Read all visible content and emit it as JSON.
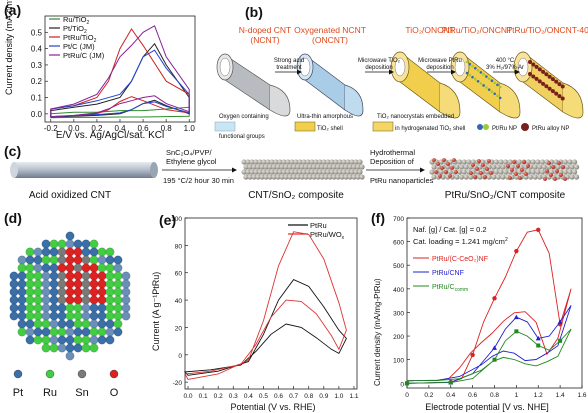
{
  "panels": {
    "a": {
      "label": "(a)",
      "ylabel": "Current density (mA cm",
      "ylabel_sup": "-2",
      "ylabel_end": ")",
      "xlabel": "E/V vs. Ag/AgCl/sat. KCl",
      "yticks": [
        "0.0",
        "0.1",
        "0.2",
        "0.3",
        "0.4",
        "0.5"
      ],
      "xticks": [
        "-0.2",
        "0.0",
        "0.2",
        "0.4",
        "0.6",
        "0.8",
        "1.0"
      ],
      "legend": [
        "Ru/TiO",
        "Pt/TiO",
        "PtRu/TiO",
        "Pt/C (JM)",
        "PtRu/C (JM)"
      ],
      "legend_sub": [
        "2",
        "2",
        "2",
        "",
        ""
      ],
      "colors": [
        "#2e8b2e",
        "#222222",
        "#cc2222",
        "#2244cc",
        "#882299"
      ]
    },
    "b": {
      "label": "(b)",
      "stage_titles": [
        "N-doped CNT",
        "Oxygenated NCNT",
        "TiO₂/ONCNT",
        "PtRu/TiO₂/ONCNT",
        "PtRu/TiO₂/ONCNT-400"
      ],
      "stage_sub": [
        "(NCNT)",
        "(ONCNT)"
      ],
      "arrows": [
        "Strong acid treatment",
        "Microwave TiO₂ deposition",
        "Microwave PtRu deposition",
        "400 °C 3% H₂/97% Ar"
      ],
      "legend": [
        "Oxygen containing functional groups",
        "Ultra-thin amorphous TiO₂ shell",
        "TiO₂ nanocrystals embedded in hydrogenated TiO₂ shell",
        "Pt/Ru NP",
        "PtRu alloy NP"
      ]
    },
    "c": {
      "label": "(c)",
      "start_label": "Acid oxidized CNT",
      "arrow1_top": "SnC₂O₄/PVP/ Ethylene glycol",
      "arrow1_bottom": "195 °C/2 hour 30 min",
      "mid_label": "CNT/SnO₂ composite",
      "arrow2_top": "Hydrothermal Deposition of",
      "arrow2_bottom": "PtRu nanoparticles",
      "end_label": "PtRu/SnO₂/CNT composite"
    },
    "d": {
      "label": "(d)",
      "legend": [
        "Pt",
        "Ru",
        "Sn",
        "O"
      ],
      "colors": [
        "#3a6fa8",
        "#44cc44",
        "#7a7a7a",
        "#dd2222"
      ]
    },
    "e": {
      "label": "(e)",
      "ylabel": "Current (A g⁻¹PtRu)",
      "xlabel": "Potential (V vs. RHE)",
      "yticks": [
        "-20",
        "0",
        "20",
        "40",
        "60",
        "80",
        "100"
      ],
      "xticks": [
        "0.0",
        "0.1",
        "0.2",
        "0.3",
        "0.4",
        "0.5",
        "0.6",
        "0.7",
        "0.8",
        "0.9",
        "1.0",
        "1.1"
      ],
      "legend": [
        "PtRu",
        "PtRu/WO"
      ],
      "legend_sub": [
        "",
        "x"
      ],
      "colors": [
        "#111111",
        "#dd3333"
      ]
    },
    "f": {
      "label": "(f)",
      "ylabel": "Current density (mA/mg-PtRu)",
      "xlabel": "Electrode potential [V vs. NHE]",
      "xticks": [
        "0",
        "0.2",
        "0.4",
        "0.6",
        "0.8",
        "1",
        "1.2",
        "1.4",
        "1.6"
      ],
      "yticks": [
        "0",
        "100",
        "200",
        "300",
        "400",
        "500",
        "600",
        "700"
      ],
      "note1": "Naf. [g] / Cat. [g] = 0.2",
      "note2": "Cat. loading = 1.241 mg/cm",
      "note2_sup": "2",
      "legend": [
        "PtRu/(C-CeO₂)NF",
        "PtRu/CNF",
        "PtRu/C"
      ],
      "legend_sub": [
        "",
        "",
        "comm"
      ],
      "colors": [
        "#dd2222",
        "#2222cc",
        "#228822"
      ]
    }
  },
  "chart_data": [
    {
      "type": "line",
      "xlabel": "E/V vs. Ag/AgCl/sat. KCl",
      "ylabel": "Current density (mA cm-2)",
      "xlim": [
        -0.25,
        1.05
      ],
      "ylim": [
        -0.05,
        0.6
      ],
      "series": [
        {
          "name": "Ru/TiO2",
          "x": [
            -0.2,
            0.0,
            0.2,
            0.4,
            0.6,
            0.8,
            1.0
          ],
          "y": [
            0.0,
            0.01,
            0.01,
            0.02,
            0.02,
            0.03,
            0.04
          ]
        },
        {
          "name": "Pt/TiO2",
          "x": [
            -0.2,
            0.0,
            0.2,
            0.4,
            0.5,
            0.6,
            0.7,
            0.8,
            1.0
          ],
          "y": [
            0.02,
            0.04,
            0.06,
            0.1,
            0.2,
            0.35,
            0.43,
            0.3,
            0.1
          ]
        },
        {
          "name": "PtRu/TiO2",
          "x": [
            -0.2,
            0.0,
            0.2,
            0.3,
            0.4,
            0.5,
            0.6,
            0.8,
            1.0
          ],
          "y": [
            0.03,
            0.05,
            0.1,
            0.2,
            0.4,
            0.52,
            0.42,
            0.2,
            0.12
          ]
        },
        {
          "name": "Pt/C (JM)",
          "x": [
            -0.2,
            0.0,
            0.2,
            0.4,
            0.5,
            0.6,
            0.7,
            0.8,
            1.0
          ],
          "y": [
            0.03,
            0.05,
            0.08,
            0.12,
            0.2,
            0.35,
            0.39,
            0.28,
            0.12
          ]
        },
        {
          "name": "PtRu/C (JM)",
          "x": [
            -0.2,
            0.0,
            0.2,
            0.3,
            0.4,
            0.5,
            0.6,
            0.7,
            0.8,
            1.0
          ],
          "y": [
            0.03,
            0.06,
            0.12,
            0.22,
            0.35,
            0.42,
            0.5,
            0.54,
            0.35,
            0.15
          ]
        }
      ]
    },
    {
      "type": "line",
      "xlabel": "Potential (V vs. RHE)",
      "ylabel": "Current (A g-1PtRu)",
      "xlim": [
        -0.02,
        1.12
      ],
      "ylim": [
        -25,
        100
      ],
      "series": [
        {
          "name": "PtRu",
          "x": [
            0.0,
            0.2,
            0.4,
            0.5,
            0.6,
            0.7,
            0.8,
            0.9,
            1.0,
            1.05
          ],
          "y": [
            -15,
            -12,
            -5,
            15,
            40,
            55,
            50,
            35,
            18,
            12
          ]
        },
        {
          "name": "PtRu/WOx",
          "x": [
            0.0,
            0.2,
            0.4,
            0.5,
            0.6,
            0.7,
            0.8,
            0.9,
            1.0,
            1.05
          ],
          "y": [
            -18,
            -14,
            -4,
            25,
            65,
            90,
            88,
            70,
            38,
            18
          ]
        }
      ]
    },
    {
      "type": "line",
      "xlabel": "Electrode potential [V vs. NHE]",
      "ylabel": "Current density (mA/mg-PtRu)",
      "xlim": [
        0,
        1.6
      ],
      "ylim": [
        -20,
        700
      ],
      "series": [
        {
          "name": "PtRu/(C-CeO2)NF",
          "x": [
            0.0,
            0.2,
            0.4,
            0.5,
            0.6,
            0.7,
            0.8,
            0.9,
            1.0,
            1.1,
            1.2,
            1.3,
            1.4,
            1.5
          ],
          "y": [
            0,
            2,
            5,
            20,
            120,
            260,
            360,
            450,
            560,
            640,
            650,
            550,
            250,
            400
          ]
        },
        {
          "name": "PtRu/CNF",
          "x": [
            0.0,
            0.2,
            0.4,
            0.6,
            0.8,
            0.9,
            1.0,
            1.1,
            1.2,
            1.3,
            1.4,
            1.5
          ],
          "y": [
            0,
            2,
            4,
            40,
            150,
            230,
            280,
            260,
            190,
            200,
            260,
            330
          ]
        },
        {
          "name": "PtRu/Ccomm",
          "x": [
            0.0,
            0.2,
            0.4,
            0.6,
            0.8,
            0.9,
            1.0,
            1.1,
            1.2,
            1.3,
            1.4,
            1.5
          ],
          "y": [
            0,
            2,
            3,
            20,
            100,
            180,
            220,
            200,
            160,
            140,
            180,
            230
          ]
        }
      ]
    }
  ]
}
